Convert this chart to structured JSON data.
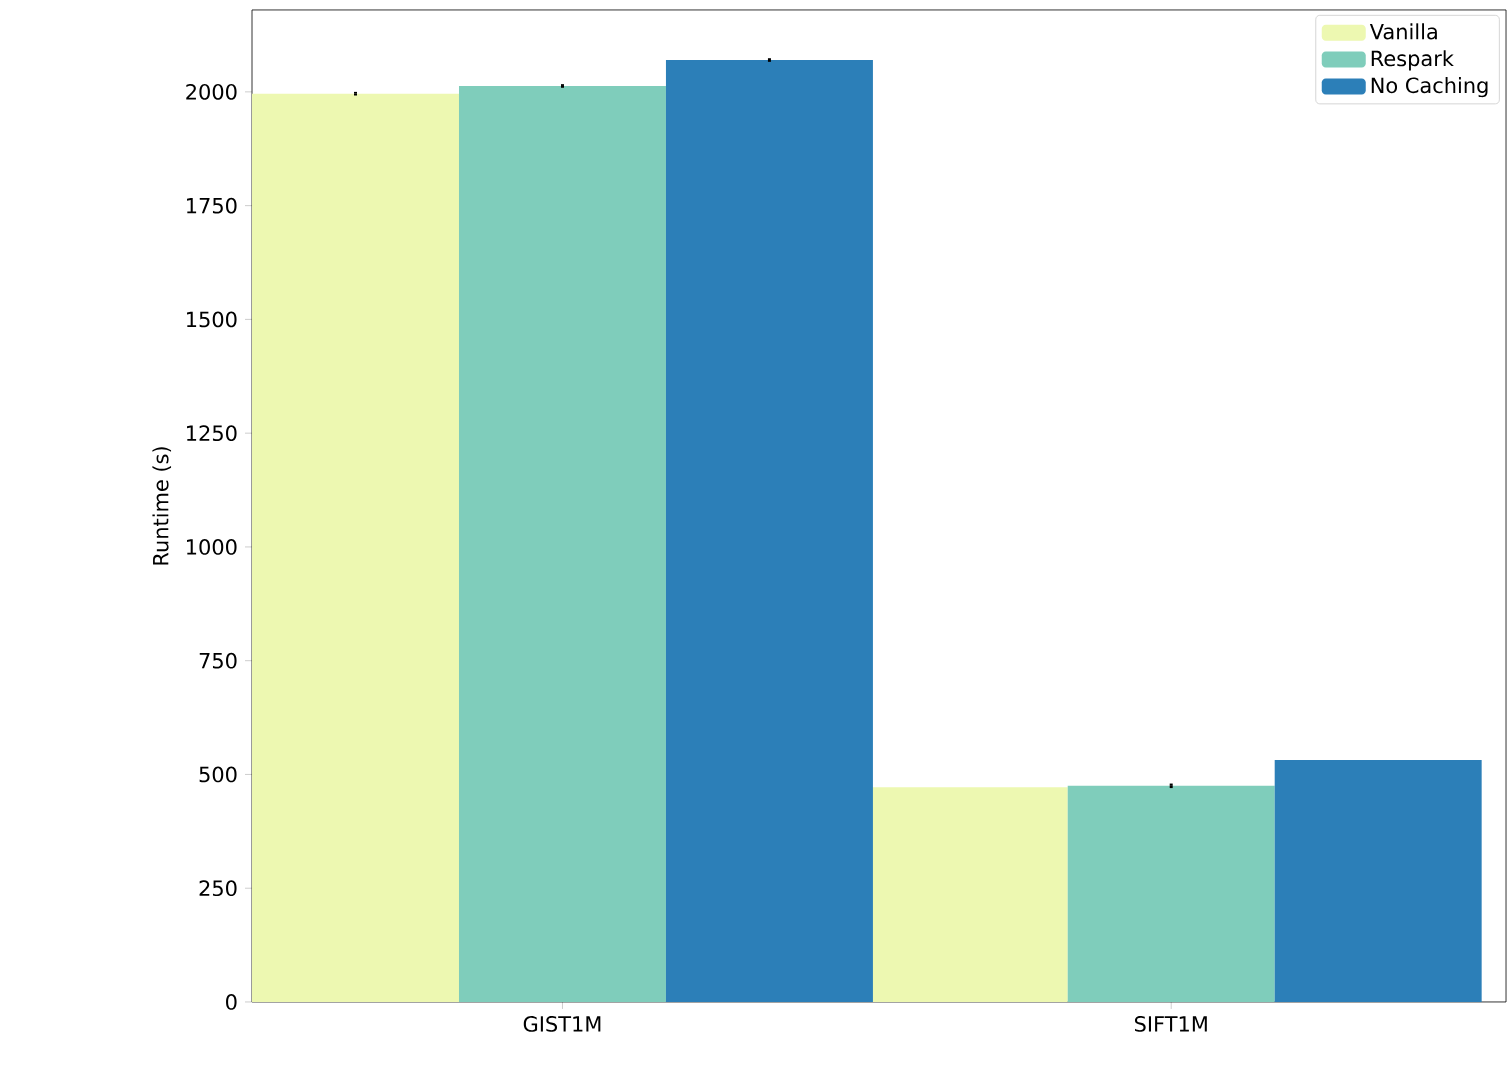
{
  "chart_data": {
    "type": "bar",
    "ylabel": "Runtime (s)",
    "categories": [
      "GIST1M",
      "SIFT1M"
    ],
    "series": [
      {
        "name": "Vanilla",
        "color": "#edf8b1",
        "values": [
          1996,
          472
        ],
        "errors": [
          4,
          null
        ]
      },
      {
        "name": "Respark",
        "color": "#7fcdbb",
        "values": [
          2013,
          475
        ],
        "errors": [
          4,
          5
        ]
      },
      {
        "name": "No Caching",
        "color": "#2c7fb8",
        "values": [
          2070,
          532
        ],
        "errors": [
          4,
          null
        ]
      }
    ],
    "ylim": [
      0,
      2180
    ],
    "yticks": [
      0,
      250,
      500,
      750,
      1000,
      1250,
      1500,
      1750,
      2000
    ],
    "grid": false,
    "legend": "top right"
  }
}
